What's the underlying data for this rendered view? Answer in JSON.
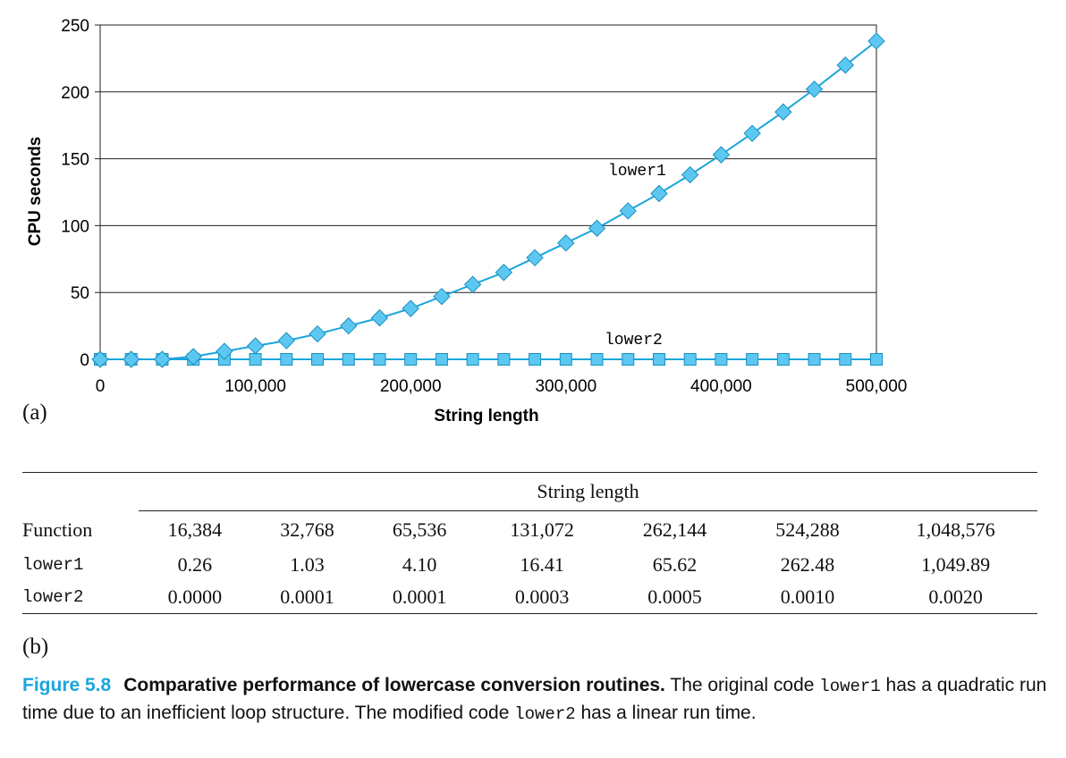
{
  "chart_data": {
    "type": "line",
    "xlabel": "String length",
    "ylabel": "CPU seconds",
    "xlim": [
      0,
      500000
    ],
    "ylim": [
      0,
      250
    ],
    "x_ticks": [
      0,
      100000,
      200000,
      300000,
      400000,
      500000
    ],
    "x_tick_labels": [
      "0",
      "100,000",
      "200,000",
      "300,000",
      "400,000",
      "500,000"
    ],
    "y_ticks": [
      0,
      50,
      100,
      150,
      200,
      250
    ],
    "y_tick_labels": [
      "0",
      "50",
      "100",
      "150",
      "200",
      "250"
    ],
    "grid": "horizontal",
    "x": [
      0,
      20000,
      40000,
      60000,
      80000,
      100000,
      120000,
      140000,
      160000,
      180000,
      200000,
      220000,
      240000,
      260000,
      280000,
      300000,
      320000,
      340000,
      360000,
      380000,
      400000,
      420000,
      440000,
      460000,
      480000,
      500000
    ],
    "series": [
      {
        "name": "lower1",
        "marker": "diamond",
        "values": [
          0,
          0,
          0,
          2,
          6,
          10,
          14,
          19,
          25,
          31,
          38,
          47,
          56,
          65,
          76,
          87,
          98,
          111,
          124,
          138,
          153,
          169,
          185,
          202,
          220,
          238
        ]
      },
      {
        "name": "lower2",
        "marker": "square",
        "values": [
          0,
          0,
          0,
          0,
          0,
          0,
          0,
          0,
          0,
          0,
          0,
          0,
          0,
          0,
          0,
          0,
          0,
          0,
          0,
          0,
          0,
          0,
          0,
          0,
          0,
          0
        ]
      }
    ],
    "colors": {
      "line": "#1ba6dc",
      "marker_fill": "#5cc8f2",
      "marker_stroke": "#1a8fbf"
    }
  },
  "labels": {
    "part_a": "(a)",
    "part_b": "(b)",
    "series_label_1": "lower1",
    "series_label_2": "lower2"
  },
  "table": {
    "group_header": "String length",
    "function_header": "Function",
    "columns": [
      "16,384",
      "32,768",
      "65,536",
      "131,072",
      "262,144",
      "524,288",
      "1,048,576"
    ],
    "rows": [
      {
        "name": "lower1",
        "values": [
          "0.26",
          "1.03",
          "4.10",
          "16.41",
          "65.62",
          "262.48",
          "1,049.89"
        ]
      },
      {
        "name": "lower2",
        "values": [
          "0.0000",
          "0.0001",
          "0.0001",
          "0.0003",
          "0.0005",
          "0.0010",
          "0.0020"
        ]
      }
    ]
  },
  "caption": {
    "figure_number": "Figure 5.8",
    "title": "Comparative performance of lowercase conversion routines.",
    "text_1": " The original code ",
    "code_1": "lower1",
    "text_2": " has a quadratic run time due to an inefficient loop structure. The modified code ",
    "code_2": "lower2",
    "text_3": " has a linear run time."
  }
}
